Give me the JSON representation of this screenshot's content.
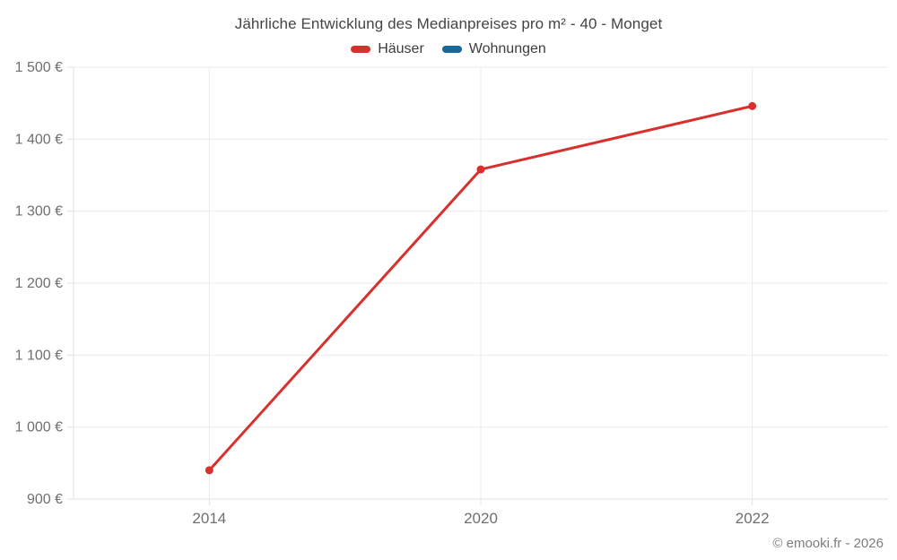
{
  "legend": {
    "items": [
      {
        "label": "Häuser",
        "color": "#d8312d"
      },
      {
        "label": "Wohnungen",
        "color": "#17689f"
      }
    ]
  },
  "footer": "© emooki.fr - 2026",
  "colors": {
    "grid": "#ebebeb",
    "axis": "#e0e0e0",
    "tick_label": "#6f6f6f",
    "title": "#444444",
    "footer": "#7d7d7d"
  },
  "chart_data": {
    "type": "line",
    "title": "Jährliche Entwicklung des Medianpreises pro m² - 40 - Monget",
    "categories": [
      "2014",
      "2020",
      "2022"
    ],
    "series": [
      {
        "name": "Häuser",
        "color": "#d8312d",
        "values": [
          940,
          1358,
          1446
        ]
      },
      {
        "name": "Wohnungen",
        "color": "#17689f",
        "values": []
      }
    ],
    "xlabel": "",
    "ylabel": "",
    "ylim": [
      900,
      1500
    ],
    "ytick_values": [
      900,
      1000,
      1100,
      1200,
      1300,
      1400,
      1500
    ],
    "ytick_labels": [
      "900 €",
      "1 000 €",
      "1 100 €",
      "1 200 €",
      "1 300 €",
      "1 400 €",
      "1 500 €"
    ],
    "grid": true,
    "legend_position": "top",
    "unit": "€"
  }
}
